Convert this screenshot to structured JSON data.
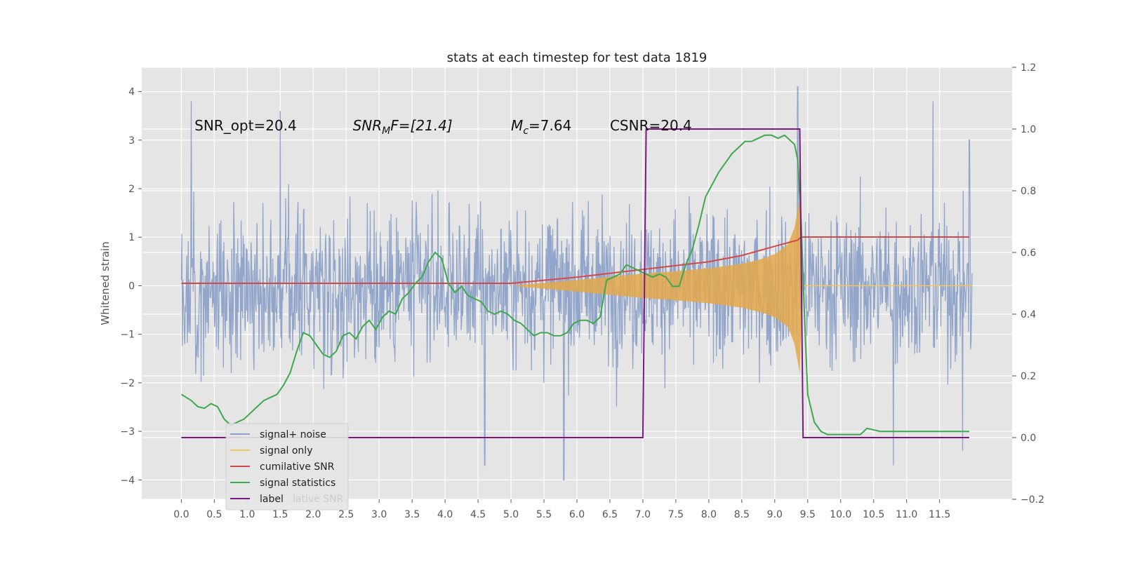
{
  "chart_data": {
    "type": "line",
    "title": "stats at each timestep for test data 1819",
    "ylabel": "Whitened strain",
    "xlim": [
      -0.6,
      12.6
    ],
    "ylim": [
      -4.4,
      4.5
    ],
    "ylim_right": [
      -0.2,
      1.2
    ],
    "grid": true,
    "x_ticks": [
      "0.0",
      "0.5",
      "1.0",
      "1.5",
      "2.0",
      "2.5",
      "3.0",
      "3.5",
      "4.0",
      "4.5",
      "5.0",
      "5.5",
      "6.0",
      "6.5",
      "7.0",
      "7.5",
      "8.0",
      "8.5",
      "9.0",
      "9.5",
      "10.0",
      "10.5",
      "11.0",
      "11.5"
    ],
    "y_ticks_left": [
      "4",
      "3",
      "2",
      "1",
      "0",
      "−1",
      "−2",
      "−3",
      "−4"
    ],
    "y_ticks_right": [
      "1.2",
      "1.0",
      "0.8",
      "0.6",
      "0.4",
      "0.2",
      "0.0",
      "−0.2"
    ],
    "annotations": [
      {
        "text": "SNR_opt=20.4",
        "x": 0.2,
        "y": 3.3
      },
      {
        "text_main": "SNR",
        "text_sub": "M",
        "text_rest": "F=[21.4]",
        "x": 2.6,
        "y": 3.3
      },
      {
        "text_main": "M",
        "text_sub": "c",
        "text_rest": "=7.64",
        "x": 5.0,
        "y": 3.3
      },
      {
        "text": "CSNR=20.4",
        "x": 6.5,
        "y": 3.3
      }
    ],
    "legend": {
      "location": "lower left",
      "entries": [
        {
          "name": "signal+ noise",
          "color": "#8da1c8"
        },
        {
          "name": "signal only",
          "color": "#f2c75c"
        },
        {
          "name": "cumilative SNR",
          "color": "#d14a4a"
        },
        {
          "name": "signal statistics",
          "color": "#3fa84f"
        },
        {
          "name": "label",
          "color": "#7a1a80"
        }
      ],
      "ghost_text": "lative SNR"
    },
    "series": [
      {
        "name": "signal+ noise",
        "axis": "left",
        "kind": "noise",
        "color": "#8da1c8",
        "x_range": [
          0.0,
          12.0
        ],
        "typical_envelope": [
          -2.0,
          2.4
        ],
        "notable_peaks": [
          [
            0.15,
            3.8
          ],
          [
            1.5,
            3.6
          ],
          [
            9.35,
            4.1
          ],
          [
            11.4,
            3.8
          ],
          [
            11.95,
            3.0
          ]
        ],
        "notable_troughs": [
          [
            4.6,
            -3.7
          ],
          [
            5.8,
            -4.0
          ],
          [
            10.8,
            -3.7
          ],
          [
            11.85,
            -3.4
          ]
        ]
      },
      {
        "name": "signal only",
        "axis": "left",
        "kind": "chirp",
        "color": "#f2c75c",
        "fill_color": "#e3a84a",
        "x": [
          5.0,
          6.0,
          7.0,
          7.5,
          8.0,
          8.5,
          8.8,
          9.0,
          9.2,
          9.3,
          9.38,
          9.42
        ],
        "amplitude": [
          0.0,
          0.12,
          0.25,
          0.3,
          0.36,
          0.45,
          0.55,
          0.65,
          0.85,
          1.2,
          1.8,
          0.0
        ]
      },
      {
        "name": "cumilative SNR",
        "axis": "right",
        "color": "#d14a4a",
        "x": [
          0.0,
          5.0,
          6.0,
          7.0,
          8.0,
          8.5,
          9.0,
          9.35,
          9.4,
          11.95
        ],
        "y": [
          0.5,
          0.5,
          0.52,
          0.545,
          0.57,
          0.59,
          0.62,
          0.64,
          0.65,
          0.65
        ]
      },
      {
        "name": "signal statistics",
        "axis": "right",
        "color": "#3fa84f",
        "x": [
          0.0,
          0.15,
          0.25,
          0.35,
          0.45,
          0.55,
          0.65,
          0.75,
          0.85,
          0.95,
          1.05,
          1.15,
          1.25,
          1.35,
          1.45,
          1.55,
          1.65,
          1.75,
          1.85,
          1.95,
          2.05,
          2.15,
          2.25,
          2.35,
          2.45,
          2.55,
          2.65,
          2.75,
          2.85,
          2.95,
          3.05,
          3.15,
          3.25,
          3.35,
          3.45,
          3.55,
          3.65,
          3.75,
          3.85,
          3.95,
          4.05,
          4.15,
          4.25,
          4.35,
          4.45,
          4.55,
          4.65,
          4.75,
          4.85,
          4.95,
          5.05,
          5.15,
          5.25,
          5.35,
          5.45,
          5.55,
          5.65,
          5.75,
          5.85,
          5.95,
          6.05,
          6.15,
          6.25,
          6.35,
          6.45,
          6.55,
          6.65,
          6.75,
          6.85,
          6.95,
          7.05,
          7.15,
          7.25,
          7.35,
          7.45,
          7.55,
          7.65,
          7.75,
          7.85,
          7.95,
          8.05,
          8.15,
          8.25,
          8.35,
          8.45,
          8.55,
          8.65,
          8.75,
          8.85,
          8.95,
          9.05,
          9.15,
          9.25,
          9.3,
          9.35,
          9.4,
          9.45,
          9.5,
          9.6,
          9.7,
          9.8,
          10.0,
          10.2,
          10.3,
          10.4,
          10.6,
          10.8,
          11.0,
          11.2,
          11.4,
          11.6,
          11.8,
          11.95
        ],
        "y": [
          0.14,
          0.12,
          0.1,
          0.095,
          0.11,
          0.1,
          0.06,
          0.04,
          0.05,
          0.06,
          0.08,
          0.1,
          0.12,
          0.13,
          0.14,
          0.17,
          0.21,
          0.28,
          0.34,
          0.33,
          0.3,
          0.27,
          0.26,
          0.28,
          0.33,
          0.34,
          0.32,
          0.36,
          0.38,
          0.35,
          0.39,
          0.41,
          0.4,
          0.45,
          0.47,
          0.5,
          0.52,
          0.57,
          0.6,
          0.58,
          0.5,
          0.47,
          0.49,
          0.46,
          0.45,
          0.44,
          0.41,
          0.4,
          0.41,
          0.4,
          0.38,
          0.37,
          0.35,
          0.33,
          0.34,
          0.34,
          0.33,
          0.33,
          0.34,
          0.37,
          0.38,
          0.38,
          0.37,
          0.39,
          0.51,
          0.52,
          0.53,
          0.56,
          0.55,
          0.54,
          0.53,
          0.52,
          0.53,
          0.52,
          0.49,
          0.49,
          0.56,
          0.61,
          0.69,
          0.78,
          0.82,
          0.86,
          0.89,
          0.92,
          0.94,
          0.96,
          0.96,
          0.97,
          0.98,
          0.98,
          0.97,
          0.98,
          0.96,
          0.95,
          0.9,
          0.7,
          0.4,
          0.14,
          0.05,
          0.02,
          0.01,
          0.01,
          0.01,
          0.01,
          0.03,
          0.02,
          0.02,
          0.02,
          0.02,
          0.02,
          0.02,
          0.02,
          0.02
        ]
      },
      {
        "name": "label",
        "axis": "right",
        "color": "#7a1a80",
        "x": [
          0.0,
          7.0,
          7.05,
          9.38,
          9.43,
          11.95
        ],
        "y": [
          0.0,
          0.0,
          1.0,
          1.0,
          0.0,
          0.0
        ]
      }
    ]
  }
}
